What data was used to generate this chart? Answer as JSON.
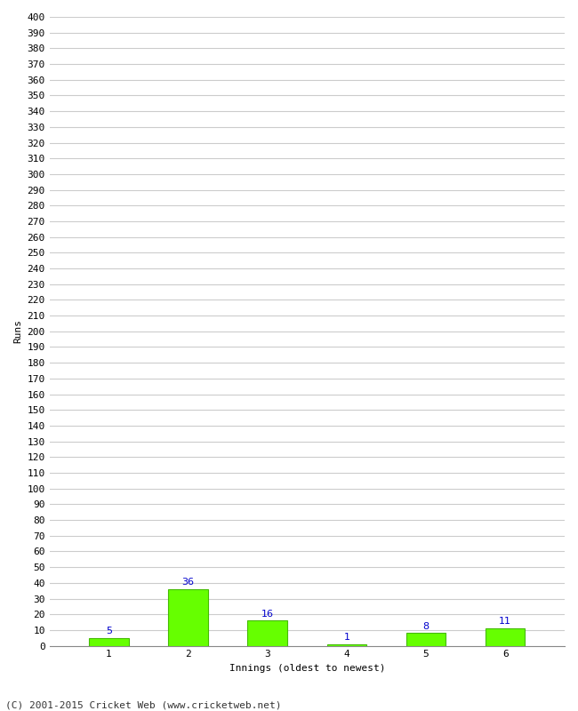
{
  "categories": [
    1,
    2,
    3,
    4,
    5,
    6
  ],
  "values": [
    5,
    36,
    16,
    1,
    8,
    11
  ],
  "bar_color": "#66ff00",
  "bar_edge_color": "#44bb00",
  "label_color": "#0000cc",
  "xlabel": "Innings (oldest to newest)",
  "ylabel": "Runs",
  "ylim": [
    0,
    400
  ],
  "ytick_step": 10,
  "background_color": "#ffffff",
  "grid_color": "#cccccc",
  "footer_text": "(C) 2001-2015 Cricket Web (www.cricketweb.net)",
  "label_fontsize": 8,
  "axis_fontsize": 8,
  "footer_fontsize": 8,
  "ylabel_fontsize": 8,
  "xlabel_fontsize": 8
}
